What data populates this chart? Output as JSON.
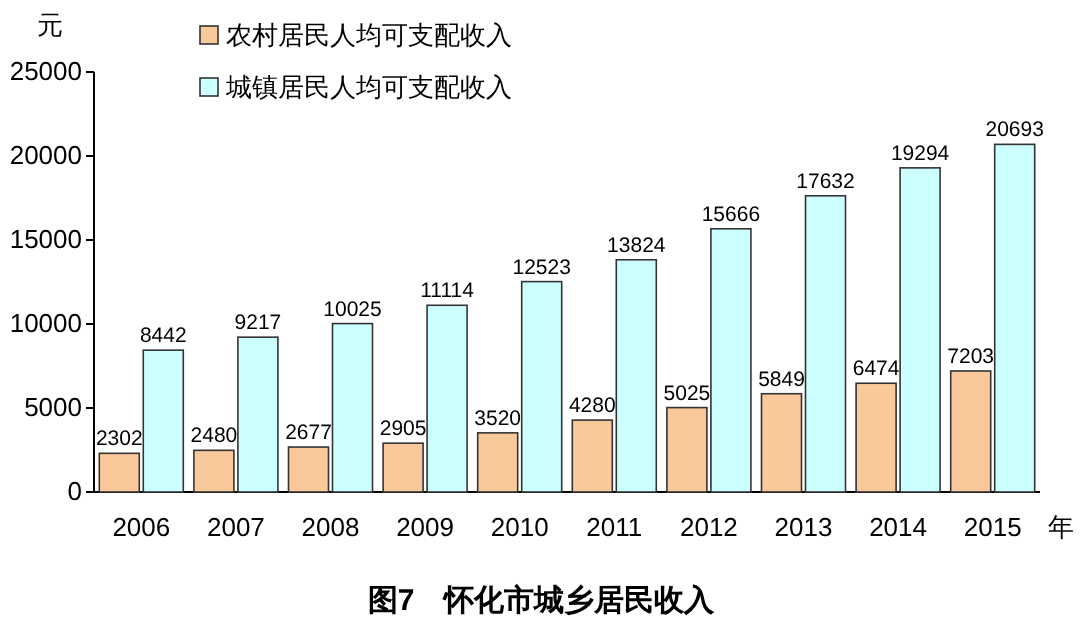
{
  "chart_data": {
    "type": "bar",
    "title": "图7　怀化市城乡居民收入",
    "ylabel": "元",
    "xlabel": "年",
    "categories": [
      "2006",
      "2007",
      "2008",
      "2009",
      "2010",
      "2011",
      "2012",
      "2013",
      "2014",
      "2015"
    ],
    "series": [
      {
        "name": "农村居民人均可支配收入",
        "color": "#f9c99b",
        "values": [
          2302,
          2480,
          2677,
          2905,
          3520,
          4280,
          5025,
          5849,
          6474,
          7203
        ]
      },
      {
        "name": "城镇居民人均可支配收入",
        "color": "#ccffff",
        "values": [
          8442,
          9217,
          10025,
          11114,
          12523,
          13824,
          15666,
          17632,
          19294,
          20693
        ]
      }
    ],
    "ylim": [
      0,
      25000
    ],
    "yticks": [
      0,
      5000,
      10000,
      15000,
      20000,
      25000
    ],
    "data_labels": true,
    "legend": "top left",
    "grid": false
  }
}
